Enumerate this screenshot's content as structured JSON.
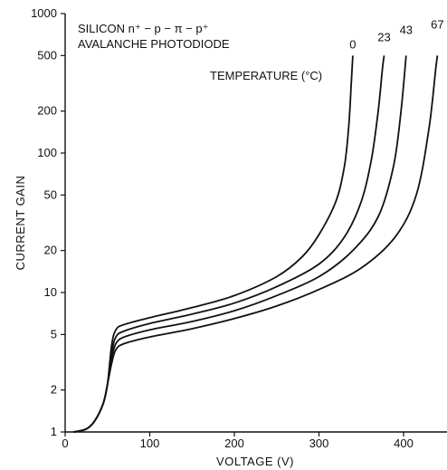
{
  "chart_data": {
    "type": "line",
    "title_line1": "SILICON n⁺ − p − π − p⁺",
    "title_line2": "AVALANCHE PHOTODIODE",
    "legend_title": "TEMPERATURE (°C)",
    "xlabel": "VOLTAGE (V)",
    "ylabel": "CURRENT GAIN",
    "xlim": [
      0,
      450
    ],
    "ylim": [
      1,
      1000
    ],
    "yscale": "log",
    "x_ticks": [
      0,
      100,
      200,
      300,
      400
    ],
    "y_ticks": [
      1,
      2,
      5,
      10,
      20,
      50,
      100,
      200,
      500,
      1000
    ],
    "x_tick_labels": [
      "0",
      "100",
      "200",
      "300",
      "400"
    ],
    "y_tick_labels": [
      "1",
      "2",
      "5",
      "10",
      "20",
      "50",
      "100",
      "200",
      "500",
      "1000"
    ],
    "grid": false,
    "series": [
      {
        "name": "0",
        "points": [
          [
            10,
            1
          ],
          [
            25,
            1.05
          ],
          [
            35,
            1.2
          ],
          [
            45,
            1.6
          ],
          [
            50,
            2.2
          ],
          [
            55,
            4.2
          ],
          [
            60,
            5.4
          ],
          [
            70,
            5.9
          ],
          [
            100,
            6.6
          ],
          [
            150,
            7.8
          ],
          [
            200,
            9.5
          ],
          [
            250,
            13
          ],
          [
            280,
            18
          ],
          [
            300,
            26
          ],
          [
            320,
            45
          ],
          [
            330,
            80
          ],
          [
            335,
            150
          ],
          [
            338,
            300
          ],
          [
            340,
            500
          ]
        ]
      },
      {
        "name": "23",
        "points": [
          [
            10,
            1
          ],
          [
            25,
            1.05
          ],
          [
            35,
            1.2
          ],
          [
            45,
            1.6
          ],
          [
            50,
            2.2
          ],
          [
            55,
            3.7
          ],
          [
            60,
            4.8
          ],
          [
            70,
            5.3
          ],
          [
            100,
            6
          ],
          [
            150,
            7
          ],
          [
            200,
            8.4
          ],
          [
            250,
            11
          ],
          [
            300,
            16
          ],
          [
            330,
            25
          ],
          [
            350,
            45
          ],
          [
            362,
            90
          ],
          [
            370,
            200
          ],
          [
            375,
            400
          ],
          [
            377,
            500
          ]
        ]
      },
      {
        "name": "43",
        "points": [
          [
            10,
            1
          ],
          [
            25,
            1.05
          ],
          [
            35,
            1.2
          ],
          [
            45,
            1.6
          ],
          [
            50,
            2.2
          ],
          [
            55,
            3.4
          ],
          [
            60,
            4.3
          ],
          [
            70,
            4.8
          ],
          [
            100,
            5.4
          ],
          [
            150,
            6.2
          ],
          [
            200,
            7.4
          ],
          [
            250,
            9.5
          ],
          [
            300,
            13
          ],
          [
            340,
            20
          ],
          [
            370,
            35
          ],
          [
            388,
            80
          ],
          [
            397,
            200
          ],
          [
            403,
            500
          ]
        ]
      },
      {
        "name": "67",
        "points": [
          [
            10,
            1
          ],
          [
            25,
            1.05
          ],
          [
            35,
            1.2
          ],
          [
            45,
            1.6
          ],
          [
            50,
            2.2
          ],
          [
            55,
            3.1
          ],
          [
            60,
            3.9
          ],
          [
            70,
            4.3
          ],
          [
            100,
            4.8
          ],
          [
            150,
            5.5
          ],
          [
            200,
            6.5
          ],
          [
            250,
            8
          ],
          [
            300,
            10.5
          ],
          [
            350,
            15
          ],
          [
            390,
            25
          ],
          [
            415,
            50
          ],
          [
            430,
            150
          ],
          [
            438,
            400
          ],
          [
            440,
            500
          ]
        ]
      }
    ]
  }
}
